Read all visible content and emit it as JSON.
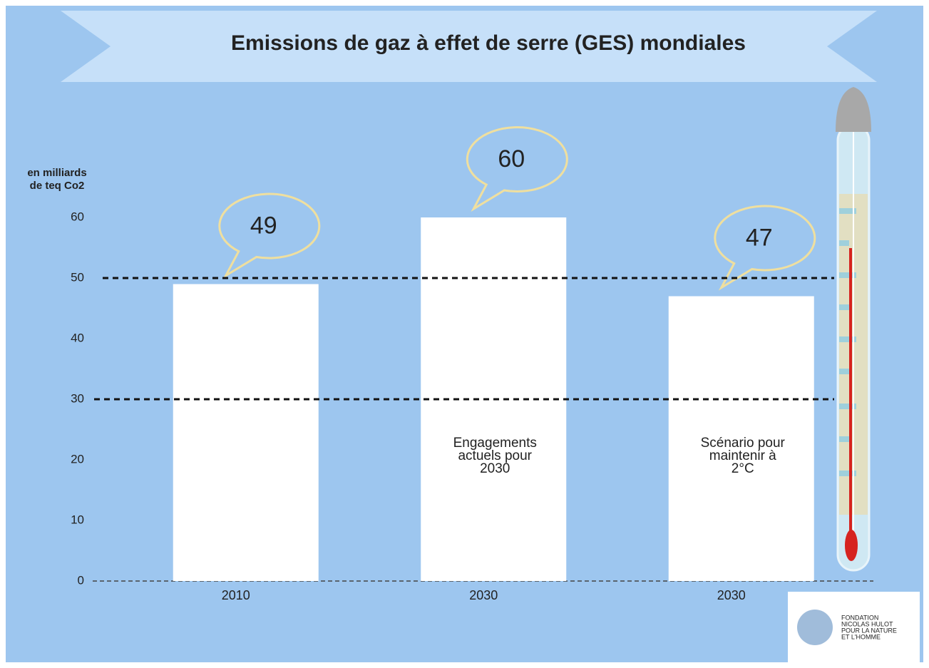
{
  "chart_data": {
    "type": "bar",
    "title": "Emissions de gaz à effet de serre (GES) mondiales",
    "ylabel": [
      "en milliards",
      "de teq Co2"
    ],
    "categories": [
      "2010",
      "2030",
      "2030"
    ],
    "values": [
      49,
      60,
      47
    ],
    "bar_annotations": [
      null,
      [
        "Engagements",
        "actuels pour",
        "2030"
      ],
      [
        "Scénario pour",
        "maintenir à",
        "2°C"
      ]
    ],
    "color": "#ffffff",
    "ylim": [
      0,
      60
    ],
    "yticks": [
      0,
      10,
      20,
      30,
      40,
      50,
      60
    ],
    "reference_lines": [
      50,
      30
    ],
    "logo": [
      "FONDATION",
      "NICOLAS HULOT",
      "POUR LA NATURE",
      "ET L'HOMME"
    ]
  }
}
